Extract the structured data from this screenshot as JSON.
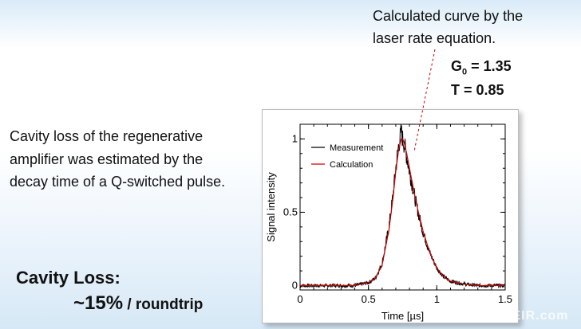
{
  "annotation": {
    "line1": "Calculated curve by the",
    "line2": "laser rate equation."
  },
  "params": {
    "g_label": "G",
    "g_sub": "0",
    "g_value": " = 1.35",
    "t_line": "T = 0.85"
  },
  "description": {
    "line1": "Cavity loss of the regenerative",
    "line2": "amplifier was estimated by the",
    "line3": "decay time of a Q-switched pulse."
  },
  "loss": {
    "title": "Cavity Loss:",
    "value": "~15%",
    "unit": " / roundtrip"
  },
  "watermark": "OEIR.com",
  "chart_data": {
    "type": "line",
    "xlabel": "Time [µs]",
    "ylabel": "Signal intensity",
    "xlim": [
      0,
      1.5
    ],
    "ylim": [
      -0.03,
      1.1
    ],
    "xticks": [
      "0",
      "0.5",
      "1",
      "1.5"
    ],
    "yticks": [
      "0",
      "0.5",
      "1"
    ],
    "legend_position": "top-left",
    "series": [
      {
        "name": "Measurement",
        "color": "#000000",
        "x": [
          0,
          0.1,
          0.2,
          0.3,
          0.4,
          0.5,
          0.55,
          0.6,
          0.65,
          0.68,
          0.7,
          0.72,
          0.74,
          0.75,
          0.76,
          0.78,
          0.8,
          0.85,
          0.9,
          0.95,
          1.0,
          1.05,
          1.1,
          1.2,
          1.3,
          1.4,
          1.5
        ],
        "y": [
          0,
          0,
          0,
          0,
          0,
          0.02,
          0.05,
          0.15,
          0.4,
          0.62,
          0.8,
          0.95,
          1.05,
          1.0,
          0.97,
          0.88,
          0.78,
          0.55,
          0.36,
          0.22,
          0.12,
          0.06,
          0.03,
          0.01,
          0,
          0,
          0
        ]
      },
      {
        "name": "Calculation",
        "color": "#cc0000",
        "x": [
          0,
          0.1,
          0.2,
          0.3,
          0.4,
          0.5,
          0.55,
          0.6,
          0.65,
          0.68,
          0.7,
          0.72,
          0.74,
          0.75,
          0.76,
          0.78,
          0.8,
          0.85,
          0.9,
          0.95,
          1.0,
          1.05,
          1.1,
          1.2,
          1.3,
          1.4,
          1.5
        ],
        "y": [
          0,
          0,
          0,
          0,
          0,
          0.02,
          0.05,
          0.14,
          0.38,
          0.6,
          0.78,
          0.92,
          1.0,
          1.0,
          0.98,
          0.9,
          0.8,
          0.56,
          0.37,
          0.22,
          0.12,
          0.06,
          0.03,
          0.01,
          0,
          0,
          0
        ]
      }
    ]
  }
}
